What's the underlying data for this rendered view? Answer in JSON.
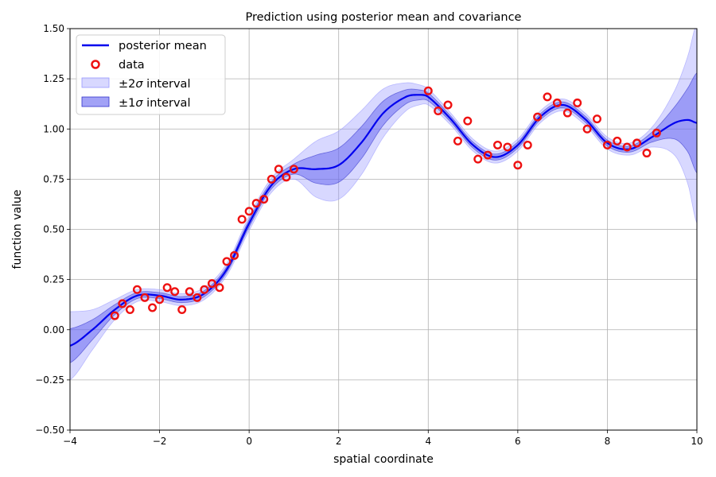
{
  "chart_data": {
    "type": "line",
    "title": "Prediction using posterior mean and covariance",
    "xlabel": "spatial coordinate",
    "ylabel": "function value",
    "xlim": [
      -4,
      10
    ],
    "ylim": [
      -0.5,
      1.5
    ],
    "xticks": [
      -4,
      -2,
      0,
      2,
      4,
      6,
      8,
      10
    ],
    "xtick_labels": [
      "−4",
      "−2",
      "0",
      "2",
      "4",
      "6",
      "8",
      "10"
    ],
    "yticks": [
      -0.5,
      -0.25,
      0,
      0.25,
      0.5,
      0.75,
      1.0,
      1.25,
      1.5
    ],
    "ytick_labels": [
      "−0.50",
      "−0.25",
      "0.00",
      "0.25",
      "0.50",
      "0.75",
      "1.00",
      "1.25",
      "1.50"
    ],
    "grid": true,
    "legend_position": "top-left",
    "legend": {
      "mean": "posterior mean",
      "data": "data",
      "band2_pre": "±2",
      "band2_sym": "σ",
      "band2_post": " interval",
      "band1_pre": "±1",
      "band1_sym": "σ",
      "band1_post": " interval"
    },
    "colors": {
      "mean": "#0000ee",
      "data": "#ee1111",
      "band1": "#5555ee",
      "band2": "#9999ff"
    },
    "posterior": {
      "x": [
        -4.0,
        -3.5,
        -3.0,
        -2.5,
        -2.0,
        -1.5,
        -1.0,
        -0.5,
        0.0,
        0.5,
        1.0,
        1.5,
        2.0,
        2.5,
        3.0,
        3.5,
        3.8,
        4.0,
        4.5,
        5.0,
        5.5,
        6.0,
        6.5,
        7.0,
        7.5,
        8.0,
        8.5,
        9.0,
        9.5,
        9.8,
        10.0
      ],
      "mean": [
        -0.08,
        0.0,
        0.1,
        0.17,
        0.17,
        0.15,
        0.18,
        0.3,
        0.53,
        0.72,
        0.8,
        0.8,
        0.82,
        0.93,
        1.08,
        1.16,
        1.17,
        1.16,
        1.05,
        0.92,
        0.86,
        0.92,
        1.06,
        1.12,
        1.05,
        0.93,
        0.9,
        0.96,
        1.03,
        1.045,
        1.03
      ],
      "sd": [
        0.085,
        0.05,
        0.025,
        0.015,
        0.015,
        0.015,
        0.015,
        0.015,
        0.018,
        0.018,
        0.025,
        0.07,
        0.085,
        0.08,
        0.06,
        0.035,
        0.025,
        0.02,
        0.015,
        0.015,
        0.015,
        0.015,
        0.015,
        0.015,
        0.015,
        0.015,
        0.015,
        0.025,
        0.08,
        0.16,
        0.25
      ]
    },
    "data_points": {
      "x": [
        -3.0,
        -2.83,
        -2.66,
        -2.5,
        -2.33,
        -2.16,
        -2.0,
        -1.83,
        -1.66,
        -1.5,
        -1.33,
        -1.16,
        -1.0,
        -0.83,
        -0.66,
        -0.5,
        -0.33,
        -0.16,
        0.0,
        0.16,
        0.33,
        0.5,
        0.66,
        0.83,
        1.0,
        4.0,
        4.22,
        4.44,
        4.66,
        4.88,
        5.11,
        5.33,
        5.55,
        5.77,
        6.0,
        6.22,
        6.44,
        6.66,
        6.88,
        7.11,
        7.33,
        7.55,
        7.77,
        8.0,
        8.22,
        8.44,
        8.66,
        8.88,
        9.1
      ],
      "y": [
        0.07,
        0.13,
        0.1,
        0.2,
        0.16,
        0.11,
        0.15,
        0.21,
        0.19,
        0.1,
        0.19,
        0.16,
        0.2,
        0.23,
        0.21,
        0.34,
        0.37,
        0.55,
        0.59,
        0.63,
        0.65,
        0.75,
        0.8,
        0.76,
        0.8,
        1.19,
        1.09,
        1.12,
        0.94,
        1.04,
        0.85,
        0.87,
        0.92,
        0.91,
        0.82,
        0.92,
        1.06,
        1.16,
        1.13,
        1.08,
        1.13,
        1.0,
        1.05,
        0.92,
        0.94,
        0.91,
        0.93,
        0.88,
        0.98
      ]
    }
  }
}
